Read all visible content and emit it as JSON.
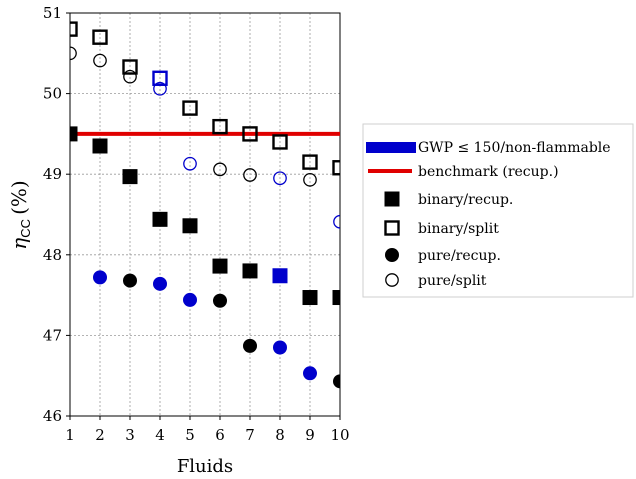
{
  "chart_data": {
    "type": "scatter",
    "xlabel": "Fluids",
    "ylabel": "η",
    "ylabel_sub": "CC",
    "ylabel_unit": "(%)",
    "xlim": [
      1,
      10
    ],
    "ylim": [
      46,
      51
    ],
    "xticks": [
      "1",
      "2",
      "3",
      "4",
      "5",
      "6",
      "7",
      "8",
      "9",
      "10"
    ],
    "yticks": [
      "46",
      "47",
      "48",
      "49",
      "50",
      "51"
    ],
    "grid": true,
    "legend_position": "right",
    "colors": {
      "highlight": "#0000cc",
      "normal": "#000000",
      "benchmark": "#e00000"
    },
    "benchmark": {
      "name": "benchmark (recup.)",
      "y": 49.5
    },
    "legend": [
      {
        "label": "GWP ≤ 150/non-flammable",
        "icon": "blue-bar"
      },
      {
        "label": "benchmark (recup.)",
        "icon": "red-line"
      },
      {
        "label": "binary/recup.",
        "icon": "filled-square"
      },
      {
        "label": "binary/split",
        "icon": "open-square"
      },
      {
        "label": "pure/recup.",
        "icon": "filled-circle"
      },
      {
        "label": "pure/split",
        "icon": "open-circle"
      }
    ],
    "series": [
      {
        "name": "binary/recup.",
        "marker": "square",
        "filled": true,
        "x": [
          1,
          2,
          3,
          4,
          5,
          6,
          7,
          8,
          9,
          10
        ],
        "y": [
          49.5,
          49.35,
          48.97,
          48.44,
          48.36,
          47.86,
          47.8,
          47.74,
          47.47,
          47.47
        ],
        "highlight": [
          false,
          false,
          false,
          false,
          false,
          false,
          false,
          true,
          false,
          false
        ]
      },
      {
        "name": "binary/split",
        "marker": "square",
        "filled": false,
        "x": [
          1,
          2,
          3,
          4,
          5,
          6,
          7,
          8,
          9,
          10
        ],
        "y": [
          50.8,
          50.7,
          50.33,
          50.19,
          49.82,
          49.59,
          49.5,
          49.4,
          49.15,
          49.08
        ],
        "highlight": [
          false,
          false,
          false,
          true,
          false,
          false,
          false,
          false,
          false,
          false
        ]
      },
      {
        "name": "pure/recup.",
        "marker": "circle",
        "filled": true,
        "x": [
          2,
          3,
          4,
          5,
          6,
          7,
          8,
          9,
          10
        ],
        "y": [
          47.72,
          47.68,
          47.64,
          47.44,
          47.43,
          46.87,
          46.85,
          46.53,
          46.43
        ],
        "highlight": [
          true,
          false,
          true,
          true,
          false,
          false,
          true,
          true,
          false
        ]
      },
      {
        "name": "pure/split",
        "marker": "circle",
        "filled": false,
        "x": [
          1,
          2,
          3,
          4,
          5,
          6,
          7,
          8,
          9,
          10
        ],
        "y": [
          50.5,
          50.41,
          50.21,
          50.06,
          49.13,
          49.06,
          48.99,
          48.95,
          48.93,
          48.41
        ],
        "highlight": [
          false,
          false,
          false,
          true,
          true,
          false,
          false,
          true,
          false,
          true
        ]
      }
    ]
  }
}
